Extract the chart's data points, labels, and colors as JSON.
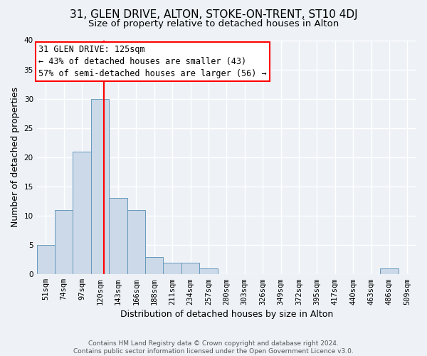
{
  "title": "31, GLEN DRIVE, ALTON, STOKE-ON-TRENT, ST10 4DJ",
  "subtitle": "Size of property relative to detached houses in Alton",
  "xlabel": "Distribution of detached houses by size in Alton",
  "ylabel": "Number of detached properties",
  "bin_labels": [
    "51sqm",
    "74sqm",
    "97sqm",
    "120sqm",
    "143sqm",
    "166sqm",
    "188sqm",
    "211sqm",
    "234sqm",
    "257sqm",
    "280sqm",
    "303sqm",
    "326sqm",
    "349sqm",
    "372sqm",
    "395sqm",
    "417sqm",
    "440sqm",
    "463sqm",
    "486sqm",
    "509sqm"
  ],
  "bar_heights": [
    5,
    11,
    21,
    30,
    13,
    11,
    3,
    2,
    2,
    1,
    0,
    0,
    0,
    0,
    0,
    0,
    0,
    0,
    0,
    1,
    0
  ],
  "bar_color": "#ccd9e8",
  "bar_edge_color": "#6699bb",
  "vline_x_idx": 3.22,
  "vline_color": "red",
  "annotation_line1": "31 GLEN DRIVE: 125sqm",
  "annotation_line2": "← 43% of detached houses are smaller (43)",
  "annotation_line3": "57% of semi-detached houses are larger (56) →",
  "annotation_box_color": "white",
  "annotation_box_edge": "red",
  "ylim": [
    0,
    40
  ],
  "yticks": [
    0,
    5,
    10,
    15,
    20,
    25,
    30,
    35,
    40
  ],
  "footnote": "Contains HM Land Registry data © Crown copyright and database right 2024.\nContains public sector information licensed under the Open Government Licence v3.0.",
  "bg_color": "#eef2f7",
  "grid_color": "white",
  "title_fontsize": 11,
  "subtitle_fontsize": 9.5,
  "axis_label_fontsize": 9,
  "tick_fontsize": 7.5,
  "annotation_fontsize": 8.5,
  "footnote_fontsize": 6.5
}
